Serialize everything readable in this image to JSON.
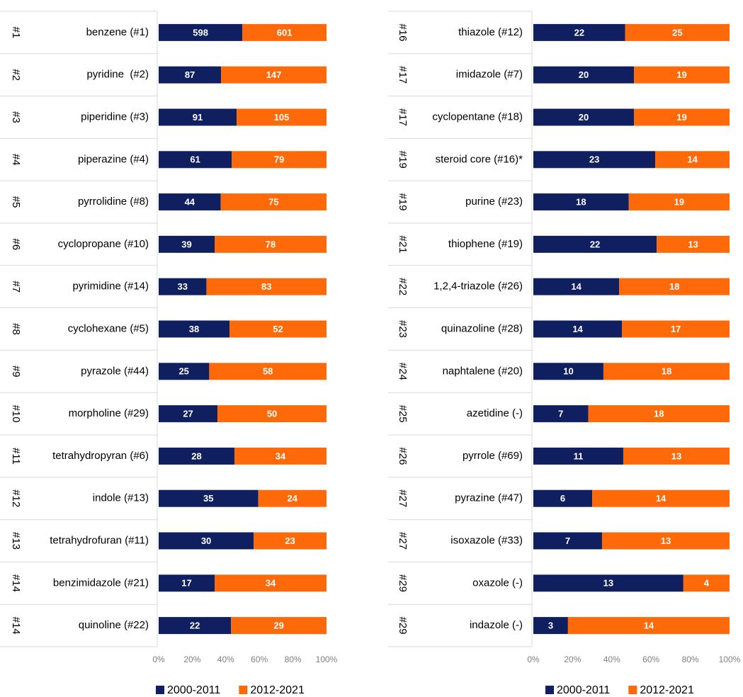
{
  "chart_data": [
    {
      "type": "bar",
      "stacked": "percent",
      "ranks": [
        "#1",
        "#2",
        "#3",
        "#4",
        "#5",
        "#6",
        "#7",
        "#8",
        "#9",
        "#10",
        "#11",
        "#12",
        "#13",
        "#14",
        "#14"
      ],
      "categories": [
        "benzene (#1)",
        "pyridine  (#2)",
        "piperidine (#3)",
        "piperazine (#4)",
        "pyrrolidine (#8)",
        "cyclopropane (#10)",
        "pyrimidine (#14)",
        "cyclohexane (#5)",
        "pyrazole (#44)",
        "morpholine (#29)",
        "tetrahydropyran (#6)",
        "indole (#13)",
        "tetrahydrofuran (#11)",
        "benzimidazole (#21)",
        "quinoline (#22)"
      ],
      "series": [
        {
          "name": "2000-2011",
          "color": "#0f1f5f",
          "values": [
            598,
            87,
            91,
            61,
            44,
            39,
            33,
            38,
            25,
            27,
            28,
            35,
            30,
            17,
            22
          ]
        },
        {
          "name": "2012-2021",
          "color": "#fe6a0a",
          "values": [
            601,
            147,
            105,
            79,
            75,
            78,
            83,
            52,
            58,
            50,
            34,
            24,
            23,
            34,
            29
          ]
        }
      ],
      "xlim": [
        0,
        100
      ],
      "xticks": [
        {
          "value": 0,
          "label": "0%"
        },
        {
          "value": 20,
          "label": "20%"
        },
        {
          "value": 40,
          "label": "40%"
        },
        {
          "value": 60,
          "label": "60%"
        },
        {
          "value": 80,
          "label": "80%"
        },
        {
          "value": 100,
          "label": "100%"
        }
      ],
      "legend": "bottom"
    },
    {
      "type": "bar",
      "stacked": "percent",
      "ranks": [
        "#16",
        "#17",
        "#17",
        "#19",
        "#19",
        "#21",
        "#22",
        "#23",
        "#24",
        "#25",
        "#26",
        "#27",
        "#27",
        "#29",
        "#29"
      ],
      "categories": [
        "thiazole (#12)",
        "imidazole (#7)",
        "cyclopentane (#18)",
        "steroid core (#16)*",
        "purine (#23)",
        "thiophene (#19)",
        "1,2,4-triazole (#26)",
        "quinazoline (#28)",
        "naphtalene (#20)",
        "azetidine (-)",
        "pyrrole (#69)",
        "pyrazine (#47)",
        "isoxazole (#33)",
        "oxazole (-)",
        "indazole (-)"
      ],
      "series": [
        {
          "name": "2000-2011",
          "color": "#0f1f5f",
          "values": [
            22,
            20,
            20,
            23,
            18,
            22,
            14,
            14,
            10,
            7,
            11,
            6,
            7,
            13,
            3
          ]
        },
        {
          "name": "2012-2021",
          "color": "#fe6a0a",
          "values": [
            25,
            19,
            19,
            14,
            19,
            13,
            18,
            17,
            18,
            18,
            13,
            14,
            13,
            4,
            14
          ]
        }
      ],
      "xlim": [
        0,
        100
      ],
      "xticks": [
        {
          "value": 0,
          "label": "0%"
        },
        {
          "value": 20,
          "label": "20%"
        },
        {
          "value": 40,
          "label": "40%"
        },
        {
          "value": 60,
          "label": "60%"
        },
        {
          "value": 80,
          "label": "80%"
        },
        {
          "value": 100,
          "label": "100%"
        }
      ],
      "legend": "bottom"
    }
  ]
}
